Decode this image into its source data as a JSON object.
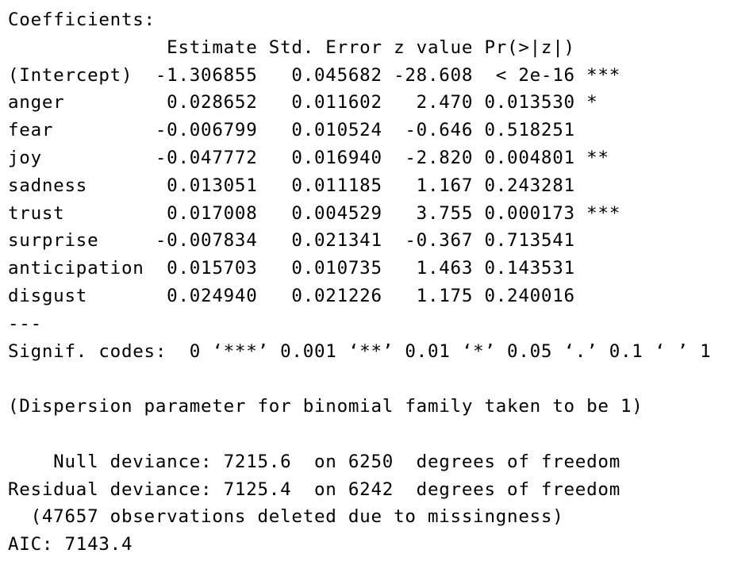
{
  "output": {
    "coefficients_label": "Coefficients:",
    "header": "              Estimate Std. Error z value Pr(>|z|)",
    "rows": [
      "(Intercept)  -1.306855   0.045682 -28.608  < 2e-16 ***",
      "anger         0.028652   0.011602   2.470 0.013530 *",
      "fear         -0.006799   0.010524  -0.646 0.518251",
      "joy          -0.047772   0.016940  -2.820 0.004801 **",
      "sadness       0.013051   0.011185   1.167 0.243281",
      "trust         0.017008   0.004529   3.755 0.000173 ***",
      "surprise     -0.007834   0.021341  -0.367 0.713541",
      "anticipation  0.015703   0.010735   1.463 0.143531",
      "disgust       0.024940   0.021226   1.175 0.240016"
    ],
    "separator": "---",
    "signif_codes": "Signif. codes:  0 ‘***’ 0.001 ‘**’ 0.01 ‘*’ 0.05 ‘.’ 0.1 ‘ ’ 1",
    "dispersion": "(Dispersion parameter for binomial family taken to be 1)",
    "null_deviance": "    Null deviance: 7215.6  on 6250  degrees of freedom",
    "residual_deviance": "Residual deviance: 7125.4  on 6242  degrees of freedom",
    "missingness": "  (47657 observations deleted due to missingness)",
    "aic": "AIC: 7143.4"
  }
}
